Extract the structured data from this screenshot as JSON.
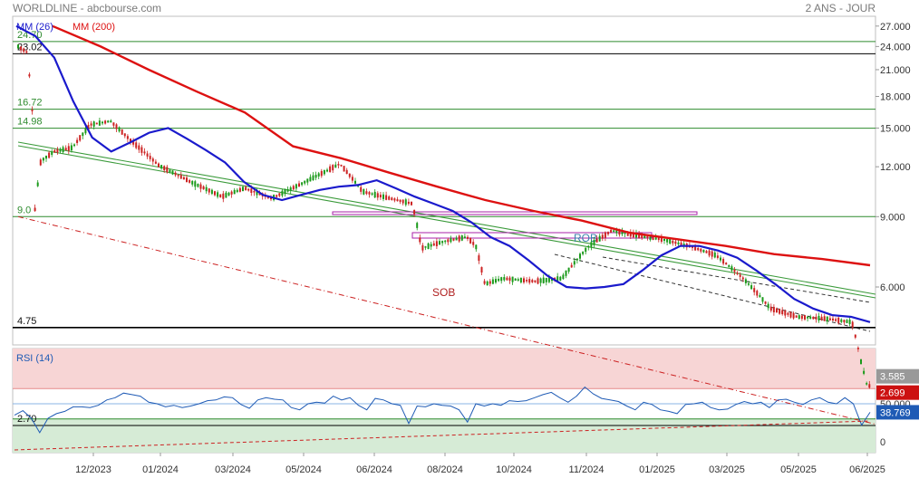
{
  "header": {
    "title": "WORLDLINE - abcbourse.com",
    "period": "2 ANS - JOUR"
  },
  "colors": {
    "ma26": "#1a1acc",
    "ma200": "#dd1111",
    "level_green": "#2e8b2e",
    "level_black": "#000000",
    "candle_up": "#1a9a1a",
    "candle_down": "#cc2222",
    "rsi_line": "#1f5bb5",
    "rsi_overbought_zone": "#f7d5d5",
    "rsi_oversold_zone": "#d6ebd6",
    "trend_dashed_red": "#cc2222",
    "trend_dashed_black": "#333333",
    "trend_green": "#3a9a3a",
    "ob_box": "#aa22aa",
    "last_price_badge": "#999999",
    "low_badge": "#cc1111",
    "rsi_badge": "#1f5bb5"
  },
  "chart_data": [
    {
      "type": "line",
      "name": "price",
      "legend": [
        "MM (26)",
        "MM (200)"
      ],
      "y_scale": "log",
      "y_ticks": [
        "27.000",
        "24.000",
        "21.000",
        "18.000",
        "15.000",
        "12.000",
        "9.000",
        "6.000"
      ],
      "y_tick_values": [
        27,
        24,
        21,
        18,
        15,
        12,
        9,
        6
      ],
      "x_ticks": [
        "12/2023",
        "01/2024",
        "03/2024",
        "05/2024",
        "06/2024",
        "08/2024",
        "10/2024",
        "11/2024",
        "01/2025",
        "03/2025",
        "05/2025",
        "06/2025"
      ],
      "horizontal_levels": [
        {
          "value": 24.7,
          "label": "24.70",
          "color": "green"
        },
        {
          "value": 23.02,
          "label": "23.02",
          "color": "black"
        },
        {
          "value": 16.72,
          "label": "16.72",
          "color": "green"
        },
        {
          "value": 14.98,
          "label": "14.98",
          "color": "green"
        },
        {
          "value": 9.0,
          "label": "9.0",
          "color": "green"
        },
        {
          "value": 4.75,
          "label": "4.75",
          "color": "black"
        },
        {
          "value": 2.7,
          "label": "2.70",
          "color": "black"
        }
      ],
      "annotations": [
        "ROB",
        "SOB"
      ],
      "last_price": "3.585",
      "low_price": "2.699",
      "ma26_values": [
        27.0,
        25.5,
        22.5,
        17.5,
        14.2,
        13.1,
        13.8,
        14.6,
        15.0,
        14.1,
        13.2,
        12.3,
        11.0,
        10.2,
        9.9,
        10.2,
        10.5,
        10.7,
        10.8,
        11.1,
        10.6,
        10.1,
        9.7,
        9.3,
        8.7,
        8.0,
        7.6,
        7.0,
        6.4,
        6.0,
        5.95,
        6.0,
        6.1,
        6.6,
        7.2,
        7.6,
        7.6,
        7.4,
        7.1,
        6.6,
        6.1,
        5.6,
        5.3,
        5.1,
        5.05,
        4.9
      ],
      "ma200_values": [
        27.0,
        24.0,
        21.0,
        18.5,
        16.4,
        13.5,
        12.6,
        11.6,
        10.7,
        9.9,
        9.3,
        8.8,
        8.2,
        7.9,
        7.6,
        7.25,
        7.05,
        6.8
      ]
    },
    {
      "type": "line",
      "name": "rsi",
      "legend": [
        "RSI (14)"
      ],
      "y_ticks": [
        "50.000",
        "0"
      ],
      "y_tick_values": [
        50,
        0
      ],
      "levels": [
        70,
        50,
        30
      ],
      "last_value": "38.769",
      "values": [
        35,
        41,
        31,
        12,
        31,
        37,
        40,
        46,
        46,
        45,
        48,
        55,
        58,
        64,
        62,
        60,
        52,
        50,
        46,
        48,
        45,
        47,
        50,
        54,
        55,
        59,
        58,
        49,
        44,
        55,
        58,
        56,
        55,
        45,
        42,
        50,
        52,
        51,
        60,
        55,
        58,
        48,
        42,
        57,
        55,
        50,
        48,
        24,
        47,
        46,
        50,
        48,
        47,
        42,
        26,
        50,
        47,
        50,
        48,
        54,
        53,
        54,
        58,
        62,
        65,
        58,
        52,
        60,
        72,
        63,
        57,
        55,
        53,
        47,
        42,
        52,
        49,
        42,
        40,
        37,
        49,
        50,
        52,
        45,
        42,
        43,
        49,
        53,
        50,
        52,
        45,
        55,
        56,
        52,
        49,
        55,
        58,
        52,
        50,
        58,
        50,
        22,
        38.769
      ]
    }
  ]
}
